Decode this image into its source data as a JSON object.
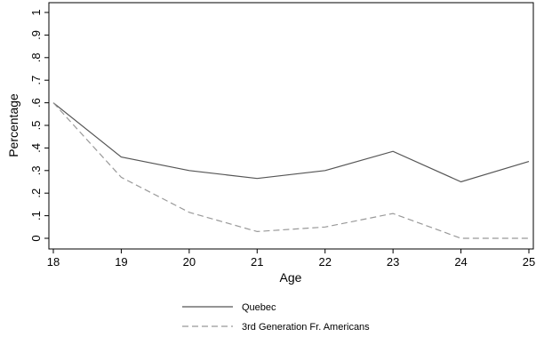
{
  "chart_data": {
    "type": "line",
    "xlabel": "Age",
    "ylabel": "Percentage",
    "x": [
      18,
      19,
      20,
      21,
      22,
      23,
      24,
      25
    ],
    "xticks": [
      "18",
      "19",
      "20",
      "21",
      "22",
      "23",
      "24",
      "25"
    ],
    "yticks": [
      "0",
      ".1",
      ".2",
      ".3",
      ".4",
      ".5",
      ".6",
      ".7",
      ".8",
      ".9",
      "1"
    ],
    "xlim": [
      18,
      25
    ],
    "ylim": [
      0,
      1
    ],
    "grid": false,
    "legend_position": "bottom",
    "series": [
      {
        "name": "Quebec",
        "style": "solid",
        "color": "#555555",
        "values": [
          0.6,
          0.36,
          0.3,
          0.265,
          0.3,
          0.385,
          0.25,
          0.34
        ]
      },
      {
        "name": "3rd Generation Fr. Americans",
        "style": "dashed",
        "color": "#999999",
        "values": [
          0.6,
          0.27,
          0.115,
          0.03,
          0.05,
          0.11,
          0.0,
          0.0
        ]
      }
    ]
  }
}
